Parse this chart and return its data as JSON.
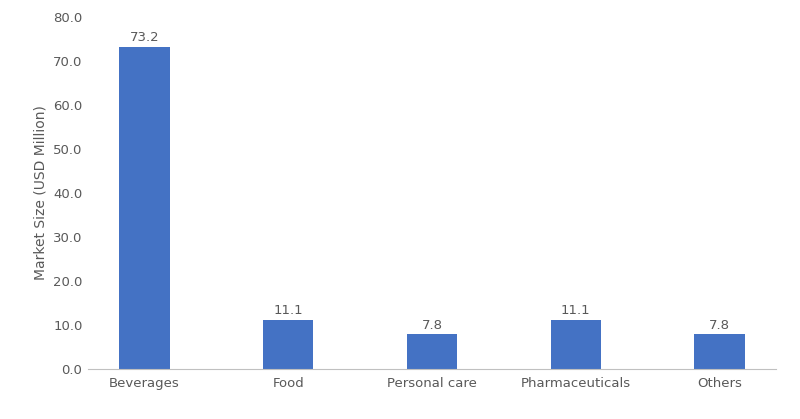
{
  "categories": [
    "Beverages",
    "Food",
    "Personal care",
    "Pharmaceuticals",
    "Others"
  ],
  "values": [
    73.2,
    11.1,
    7.8,
    11.1,
    7.8
  ],
  "bar_color": "#4472C4",
  "ylabel": "Market Size (USD Million)",
  "ylim": [
    0,
    80.0
  ],
  "yticks": [
    0.0,
    10.0,
    20.0,
    30.0,
    40.0,
    50.0,
    60.0,
    70.0,
    80.0
  ],
  "label_fontsize": 9.5,
  "tick_fontsize": 9.5,
  "ylabel_fontsize": 10,
  "background_color": "#ffffff",
  "bar_width": 0.35,
  "annotation_color": "#595959",
  "spine_color": "#c0c0c0",
  "tick_color": "#595959"
}
